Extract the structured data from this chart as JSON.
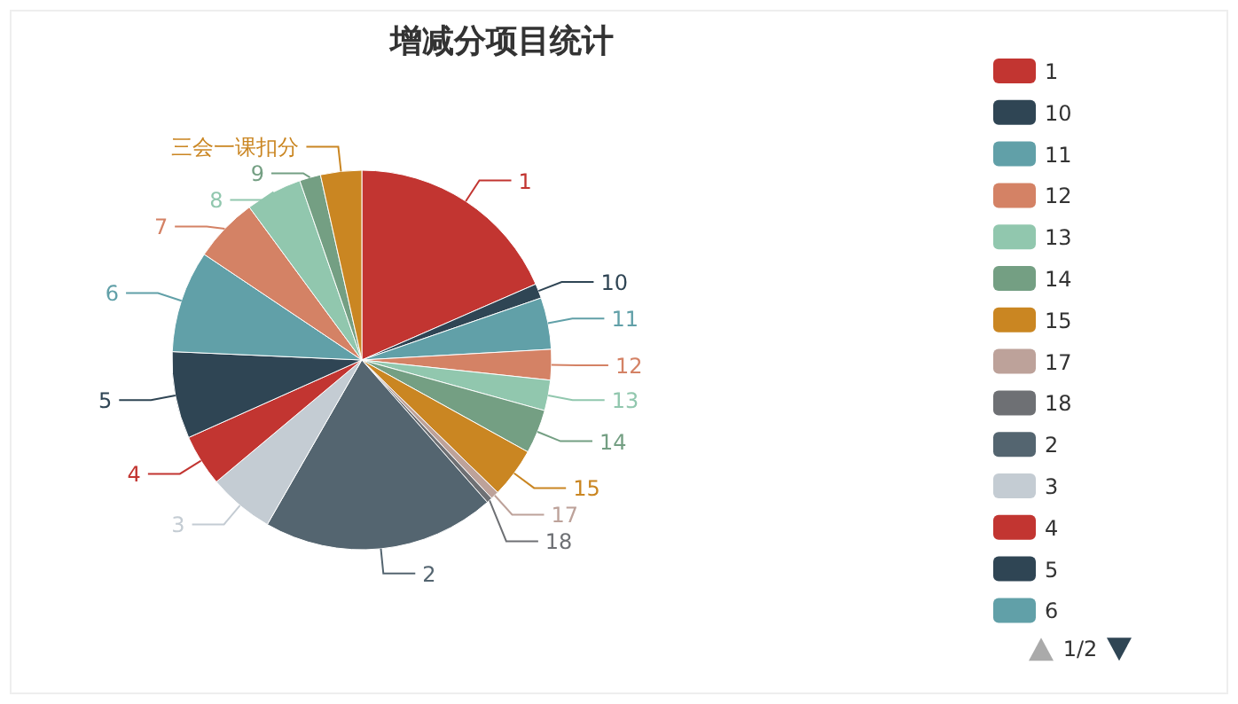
{
  "chart_data": {
    "type": "pie",
    "title": "增减分项目统计",
    "categories": [
      "1",
      "10",
      "11",
      "12",
      "13",
      "14",
      "15",
      "17",
      "18",
      "2",
      "3",
      "4",
      "5",
      "6",
      "7",
      "8",
      "9",
      "三会一课扣分"
    ],
    "values": [
      18.45,
      1.25,
      4.4,
      2.6,
      2.6,
      3.75,
      4.25,
      0.7,
      0.5,
      19.8,
      5.6,
      4.4,
      7.4,
      8.7,
      5.5,
      4.8,
      1.8,
      3.5
    ],
    "colors": [
      "#c23531",
      "#2f4554",
      "#61a0a8",
      "#d48265",
      "#91c7ae",
      "#749f83",
      "#ca8622",
      "#bda29a",
      "#6e7074",
      "#546570",
      "#c4ccd3",
      "#c23531",
      "#2f4554",
      "#61a0a8",
      "#d48265",
      "#91c7ae",
      "#749f83",
      "#ca8622"
    ],
    "legend": "right",
    "annotations": [
      "1/2"
    ]
  }
}
